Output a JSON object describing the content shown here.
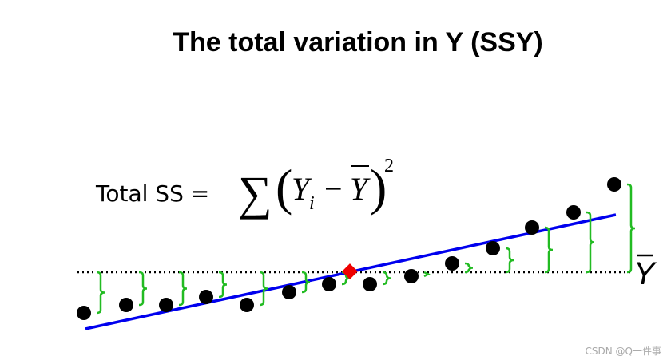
{
  "header": {
    "title": "The total variation in Y (SSY)"
  },
  "formula": {
    "label": "Total SS =",
    "sum": "∑",
    "open": "(",
    "y": "Y",
    "sub": "i",
    "minus": "−",
    "ybar": "Y",
    "close": ")",
    "power": "2"
  },
  "mean_label": "Y",
  "watermark": "CSDN @Q一件事"
}
